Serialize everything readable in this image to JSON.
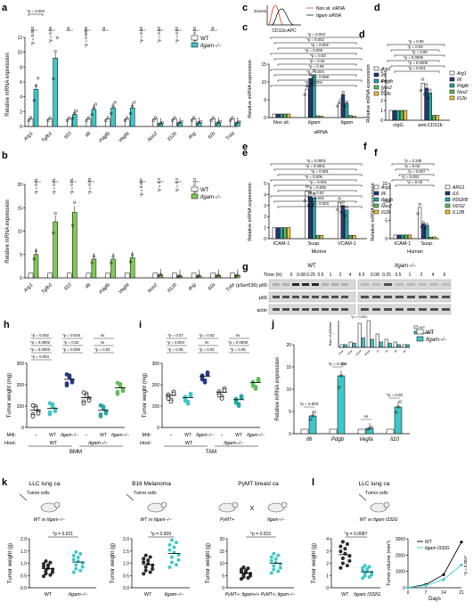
{
  "colors": {
    "wt": "#ffffff",
    "ko": "#3ec8c8",
    "ko_dark": "#1aa9b0",
    "green": "#7ecb53",
    "magenta": "#b73fa1",
    "navy": "#25397f",
    "teal": "#26a6a0",
    "yellow": "#f2c23a",
    "blue": "#3c5ab3",
    "lime": "#61bd5c",
    "red": "#d13a1d"
  },
  "panels": {
    "a": {
      "letter": "a",
      "ylabel": "Relative mRNA expression",
      "legend": [
        "WT",
        "Itgam−/−"
      ],
      "pvalues_left": [
        "*p = 0.003",
        "*p = 0.05",
        "ns",
        "*p = 0.0006",
        "ns"
      ],
      "pvalues_right": [
        "*p = 0.03",
        "*p = 0.03",
        "*p = 0.02",
        "*p = 0.02",
        "ns"
      ],
      "xticks": [
        "Arg1",
        "Tgfb1",
        "Il10",
        "Il6",
        "Pdgfb",
        "Vegfa",
        "Nos2",
        "Il12b",
        "Ifng",
        "Il1b",
        "Tnfa"
      ],
      "yticks": [
        "0",
        "2",
        "4",
        "6",
        "8",
        "10",
        "12"
      ]
    },
    "b": {
      "letter": "b",
      "ylabel": "Relative mRNA expression",
      "legend": [
        "WT",
        "Itgam−/−"
      ],
      "pvalues_left": [
        "*p = 0.01",
        "*p = 0.01",
        "*p = 0.01",
        "*p = 0.30"
      ],
      "pvalues_right": [
        "*p = 0.007",
        "*p = 0.3",
        "*p = 0.3",
        "*p = 0.13"
      ],
      "xticks": [
        "Arg1",
        "Tgfb1",
        "Il10",
        "Il6",
        "Pdgfb",
        "Vegfa",
        "Nos2",
        "Il12b",
        "Ifng",
        "Il1b",
        "Tnfa"
      ],
      "yticks": [
        "0",
        "5",
        "10",
        "15",
        "20"
      ]
    },
    "c": {
      "letter": "c",
      "flow_axis": "CD11b-APC",
      "flow_y": "Events",
      "flow_legend": [
        "Non sil. siRNA",
        "Itgam siRNA"
      ],
      "ylabel": "Relative mRNA expression",
      "xticks": [
        "Non sil.",
        "Itgam",
        "Itgam"
      ],
      "xlabel": "siRNA",
      "legend": [
        "Arg1",
        "Il6",
        "Pdgfb",
        "Nos2",
        "Il12b"
      ],
      "pvalues": [
        "*p = 0.003",
        "*p = 0.002",
        "*p = 0.002",
        "*p = 0.008",
        "*p = 0.03",
        "*p = 0.02",
        "*p = 0.05",
        "*p = 0.004",
        "*p = 0.008",
        "*p = 0.002"
      ],
      "yticks": [
        "0",
        "5",
        "10",
        "15"
      ]
    },
    "d": {
      "letter": "d",
      "ylabel": "Relative mRNA expression",
      "xticks": [
        "cIgG",
        "anti-CD11b"
      ],
      "legend": [
        "Arg1",
        "Il6",
        "Pdgfb",
        "Nos2",
        "Il12b"
      ],
      "pvalues": [
        "*p = 0.06",
        "*p = 0.03",
        "*p = 0.05",
        "*p = 0.0006",
        "*p = 0.0009",
        "*p = 0.001"
      ],
      "yticks": [
        "0",
        "1",
        "2",
        "3",
        "4",
        "5"
      ]
    },
    "e": {
      "letter": "e",
      "ylabel": "Relative mRNA expression",
      "xticks": [
        "ICAM-1",
        "Susp.",
        "VCAM-1"
      ],
      "xsub": "Murine",
      "legend": [
        "Arg1",
        "Il6",
        "Pdgfb",
        "Nos2",
        "Il12b"
      ],
      "pvalues": [
        "*p = 0.0001",
        "*p = 0.0001",
        "*p = 0.001",
        "*p = 0.005",
        "*p = 0.001",
        "*p = 0.005",
        "*p = 0.02",
        "*p = 0.001",
        "*p = 0.003"
      ],
      "yticks": [
        "0",
        "1",
        "2",
        "3",
        "4",
        "5"
      ]
    },
    "f": {
      "letter": "f",
      "ylabel": "Relative mRNA expression",
      "xticks": [
        "ICAM-1",
        "Susp."
      ],
      "xsub": "Human",
      "legend": [
        "ARG1",
        "IL6",
        "PDGFB",
        "NOS2",
        "IL12B"
      ],
      "pvalues": [
        "*p = 0.348",
        "*p = 0.03",
        "*p = 0.007",
        "*p = 0.002",
        "*p = 0.03"
      ],
      "yticks": [
        "0",
        "5",
        "10",
        "15"
      ]
    },
    "g": {
      "letter": "g",
      "group_wt": "WT",
      "group_ko": "Itgam−/−",
      "time_label": "Time (h):",
      "times": [
        "0",
        "0.08",
        "0.25",
        "0.5",
        "1",
        "2",
        "4",
        "6"
      ],
      "rows": [
        "(pSer536) p65",
        "p65",
        "actin"
      ],
      "inset_pvalue": "*p = 0.001",
      "inset_legend": [
        "WT",
        "Itgam−/−"
      ],
      "inset_ylabel": "Ratio of p65/total",
      "inset_times": [
        "0min",
        "5min",
        "15min",
        "30min",
        "1h",
        "2h",
        "4h",
        "6h"
      ]
    },
    "h": {
      "letter": "h",
      "ylabel": "Tumor weight (mg)",
      "pvalues": [
        "*p = 0.002",
        "*p = 0.018",
        "ns",
        "*p = 0.0002",
        "*p = 0.02",
        "ns",
        "*p = 0.0003",
        "*p = 0.008",
        "*p = 0.02",
        "*p = 0.004"
      ],
      "row_mphi": "MΦ:",
      "row_host": "Host:",
      "mphi": [
        "–",
        "WT",
        "Itgam−/−",
        "–",
        "WT",
        "Itgam−/−"
      ],
      "host": [
        "WT",
        "Itgam−/−"
      ],
      "xlabel": "BMM",
      "yticks": [
        "0",
        "100",
        "200",
        "300"
      ]
    },
    "i": {
      "letter": "i",
      "ylabel": "Tumor weight (mg)",
      "pvalues": [
        "*p = 0.07",
        "*p = 0.02",
        "ns",
        "*p = 0.004",
        "ns",
        "*p = 0.0009",
        "*p = 0.05",
        "*p = 0.02",
        "*p = 0.05"
      ],
      "row_mphi": "MΦ:",
      "row_host": "Host:",
      "mphi": [
        "–",
        "WT",
        "Itgam−/−",
        "–",
        "WT",
        "Itgam−/−"
      ],
      "host": [
        "WT",
        "Itgam−/−"
      ],
      "xlabel": "TAM",
      "yticks": [
        "0",
        "100",
        "200",
        "300"
      ]
    },
    "j": {
      "letter": "j",
      "ylabel": "Relative mRNA expression",
      "legend": [
        "WT",
        "Itgam−/−"
      ],
      "pvalues": [
        "*p = 0.003",
        "*p = 0.006",
        "ns",
        "*p = 0.02"
      ],
      "xticks": [
        "Il6",
        "Pdgb",
        "Vegfa",
        "Il10"
      ],
      "yticks": [
        "0",
        "5",
        "10",
        "15",
        "20"
      ]
    },
    "k": {
      "letter": "k",
      "titles": [
        "LLC lung ca",
        "B16 Melanoma",
        "PyMT breast ca"
      ],
      "tumor_cells": "Tumor cells",
      "vs": [
        "WT vs Itgam−/−",
        "WT vs Itgam−/−"
      ],
      "pymt_pair": [
        "PyMT+",
        "Itgam−/−"
      ],
      "ylabel": "Tumor weight (g)",
      "p1": "*p = 0.021",
      "p2": "*p = 0.009",
      "p3": "*p = 0.015",
      "x1": [
        "WT",
        "Itgam−/−"
      ],
      "x2": [
        "WT",
        "Itgam−/−"
      ],
      "x3": [
        "PyMT+; Itgam+/+",
        "PyMT+; Itgam−/−"
      ],
      "yticks1": [
        "0.0",
        "0.5",
        "1.0",
        "1.5",
        "2.0"
      ],
      "yticks2": [
        "0.0",
        "0.5",
        "1.0",
        "1.5",
        "2.0"
      ],
      "yticks3": [
        "0",
        "5",
        "10",
        "15",
        "20"
      ]
    },
    "l": {
      "letter": "l",
      "title": "LLC lung ca",
      "tumor_cells": "Tumor cells",
      "vs": "WT vs Itgam I332G",
      "ylabel": "Tumor weight (g)",
      "p": "*p = 0.0087",
      "x": [
        "WT",
        "Itgam I332G"
      ],
      "yticks": [
        "0",
        "1",
        "2",
        "3",
        "4"
      ],
      "growth_ylabel": "Tumor volume (mm³)",
      "growth_xlabel": "Days",
      "growth_legend": [
        "WT",
        "Itgam I332G"
      ],
      "growth_p": "*p = 0.0047",
      "growth_xticks": [
        "0",
        "7",
        "14",
        "21"
      ],
      "growth_yticks": [
        "0",
        "1000",
        "2000",
        "3000"
      ]
    }
  },
  "chart_data": [
    {
      "panel": "a",
      "type": "bar",
      "categories": [
        "Arg1",
        "Tgfb1",
        "Il10",
        "Il6",
        "Pdgfb",
        "Vegfa",
        "Nos2",
        "Il12b",
        "Ifng",
        "Il1b",
        "Tnfa"
      ],
      "series": [
        {
          "name": "WT",
          "values": [
            1,
            1,
            1,
            1,
            1,
            1,
            1,
            1,
            1,
            1,
            1
          ]
        },
        {
          "name": "Itgam−/−",
          "values": [
            5,
            9.2,
            1.6,
            2.3,
            2.5,
            2.5,
            0.4,
            0.5,
            0.5,
            0.5,
            0.5
          ]
        }
      ],
      "ylim": [
        0,
        12
      ]
    },
    {
      "panel": "b",
      "type": "bar",
      "categories": [
        "Arg1",
        "Tgfb1",
        "Il10",
        "Il6",
        "Pdgfb",
        "Vegfa",
        "Nos2",
        "Il12b",
        "Ifng",
        "Il1b",
        "Tnfa"
      ],
      "series": [
        {
          "name": "WT",
          "values": [
            1,
            1,
            1,
            1,
            1,
            1,
            1,
            1,
            1,
            1,
            1
          ]
        },
        {
          "name": "Itgam−/−",
          "values": [
            5,
            12,
            14,
            4,
            4,
            4.3,
            0.6,
            0.4,
            0.4,
            0.5,
            0.5
          ]
        }
      ],
      "ylim": [
        0,
        20
      ]
    },
    {
      "panel": "c",
      "type": "bar",
      "categories": [
        "Non sil.",
        "Itgam",
        "Itgam"
      ],
      "series": [
        {
          "name": "Arg1",
          "values": [
            1,
            8,
            4
          ]
        },
        {
          "name": "Il6",
          "values": [
            1,
            11,
            6.5
          ]
        },
        {
          "name": "Pdgfb",
          "values": [
            1,
            12,
            4
          ]
        },
        {
          "name": "Nos2",
          "values": [
            1,
            0.5,
            0.6
          ]
        },
        {
          "name": "Il12b",
          "values": [
            1,
            0.4,
            0.4
          ]
        }
      ],
      "ylim": [
        0,
        15
      ]
    },
    {
      "panel": "d",
      "type": "bar",
      "categories": [
        "cIgG",
        "anti-CD11b"
      ],
      "series": [
        {
          "name": "Arg1",
          "values": [
            1,
            3.8
          ]
        },
        {
          "name": "Il6",
          "values": [
            1,
            3.3
          ]
        },
        {
          "name": "Pdgfb",
          "values": [
            1,
            2.8
          ]
        },
        {
          "name": "Nos2",
          "values": [
            1,
            0.5
          ]
        },
        {
          "name": "Il12b",
          "values": [
            1,
            0.5
          ]
        }
      ],
      "ylim": [
        0,
        5
      ]
    },
    {
      "panel": "e",
      "type": "bar",
      "categories": [
        "ICAM-1",
        "Susp.",
        "VCAM-1"
      ],
      "series": [
        {
          "name": "Arg1",
          "values": [
            1,
            4.3,
            3.3
          ]
        },
        {
          "name": "Il6",
          "values": [
            1,
            3.8,
            3
          ]
        },
        {
          "name": "Pdgfb",
          "values": [
            1,
            3.7,
            2.6
          ]
        },
        {
          "name": "Nos2",
          "values": [
            1,
            0.3,
            0.3
          ]
        },
        {
          "name": "Il12b",
          "values": [
            1,
            0.3,
            0.3
          ]
        }
      ],
      "ylim": [
        0,
        5
      ]
    },
    {
      "panel": "f",
      "type": "bar",
      "categories": [
        "ICAM-1",
        "Susp."
      ],
      "series": [
        {
          "name": "ARG1",
          "values": [
            1,
            8.5
          ]
        },
        {
          "name": "IL6",
          "values": [
            1,
            4
          ]
        },
        {
          "name": "PDGFB",
          "values": [
            1,
            3.5
          ]
        },
        {
          "name": "NOS2",
          "values": [
            1,
            0.4
          ]
        },
        {
          "name": "IL12B",
          "values": [
            1,
            0.5
          ]
        }
      ],
      "ylim": [
        0,
        15
      ]
    },
    {
      "panel": "j",
      "type": "bar",
      "categories": [
        "Il6",
        "Pdgb",
        "Vegfa",
        "Il10"
      ],
      "series": [
        {
          "name": "WT",
          "values": [
            1,
            1,
            1,
            1
          ]
        },
        {
          "name": "Itgam−/−",
          "values": [
            4,
            13,
            1.2,
            6
          ]
        }
      ],
      "ylim": [
        0,
        20
      ]
    },
    {
      "panel": "h",
      "type": "scatter",
      "categories": [
        "WT/–",
        "WT/WT",
        "WT/Itgam−/−",
        "Itgam−/−/–",
        "Itgam−/−/WT",
        "Itgam−/−/Itgam−/−"
      ],
      "values": [
        80,
        90,
        225,
        140,
        80,
        185
      ],
      "ylim": [
        0,
        300
      ]
    },
    {
      "panel": "i",
      "type": "scatter",
      "categories": [
        "WT/–",
        "WT/WT",
        "WT/Itgam−/−",
        "Itgam−/−/–",
        "Itgam−/−/WT",
        "Itgam−/−/Itgam−/−"
      ],
      "values": [
        150,
        140,
        240,
        165,
        130,
        210
      ],
      "ylim": [
        0,
        300
      ]
    },
    {
      "panel": "k1",
      "type": "scatter",
      "categories": [
        "WT",
        "Itgam−/−"
      ],
      "values": [
        0.78,
        1.05
      ],
      "ylim": [
        0,
        2
      ]
    },
    {
      "panel": "k2",
      "type": "scatter",
      "categories": [
        "WT",
        "Itgam−/−"
      ],
      "values": [
        0.95,
        1.4
      ],
      "ylim": [
        0,
        2
      ]
    },
    {
      "panel": "k3",
      "type": "scatter",
      "categories": [
        "PyMT+; Itgam+/+",
        "PyMT+; Itgam−/−"
      ],
      "values": [
        6,
        10
      ],
      "ylim": [
        0,
        20
      ]
    },
    {
      "panel": "l1",
      "type": "scatter",
      "categories": [
        "WT",
        "Itgam I332G"
      ],
      "values": [
        2.7,
        1.3
      ],
      "ylim": [
        0,
        4
      ]
    },
    {
      "panel": "l2",
      "type": "line",
      "x": [
        0,
        7,
        14,
        21
      ],
      "series": [
        {
          "name": "WT",
          "values": [
            0,
            200,
            800,
            2800
          ]
        },
        {
          "name": "Itgam I332G",
          "values": [
            0,
            150,
            500,
            1400
          ]
        }
      ],
      "ylim": [
        0,
        3000
      ]
    }
  ]
}
